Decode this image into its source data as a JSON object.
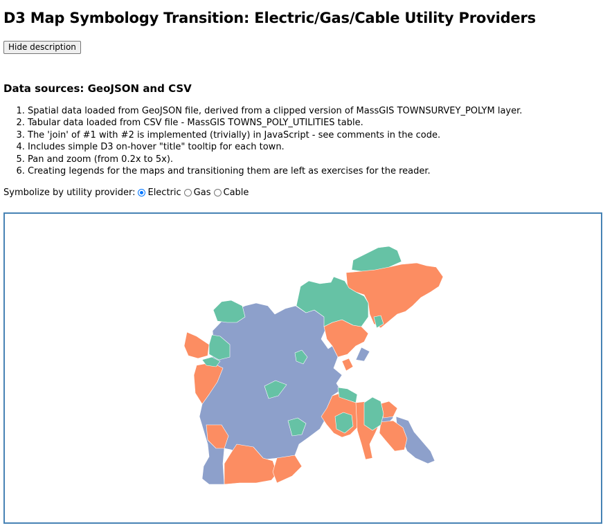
{
  "header": {
    "title": "D3 Map Symbology Transition: Electric/Gas/Cable Utility Providers"
  },
  "toggle": {
    "label": "Hide description"
  },
  "sources": {
    "heading": "Data sources: GeoJSON and CSV",
    "items": [
      "Spatial data loaded from GeoJSON file, derived from a clipped version of MassGIS TOWNSURVEY_POLYM layer.",
      "Tabular data loaded from CSV file - MassGIS TOWNS_POLY_UTILITIES table.",
      "The 'join' of #1 with #2 is implemented (trivially) in JavaScript - see comments in the code.",
      "Includes simple D3 on-hover \"title\" tooltip for each town.",
      "Pan and zoom (from 0.2x to 5x).",
      "Creating legends for the maps and transitioning them are left as exercises for the reader."
    ]
  },
  "symbolize": {
    "label": "Symbolize by utility provider:",
    "options": [
      {
        "label": "Electric",
        "selected": true
      },
      {
        "label": "Gas",
        "selected": false
      },
      {
        "label": "Cable",
        "selected": false
      }
    ]
  },
  "map": {
    "colors": {
      "blue": "#8da0cb",
      "orange": "#fc8d62",
      "green": "#66c2a5",
      "border": "#4682b4"
    }
  }
}
